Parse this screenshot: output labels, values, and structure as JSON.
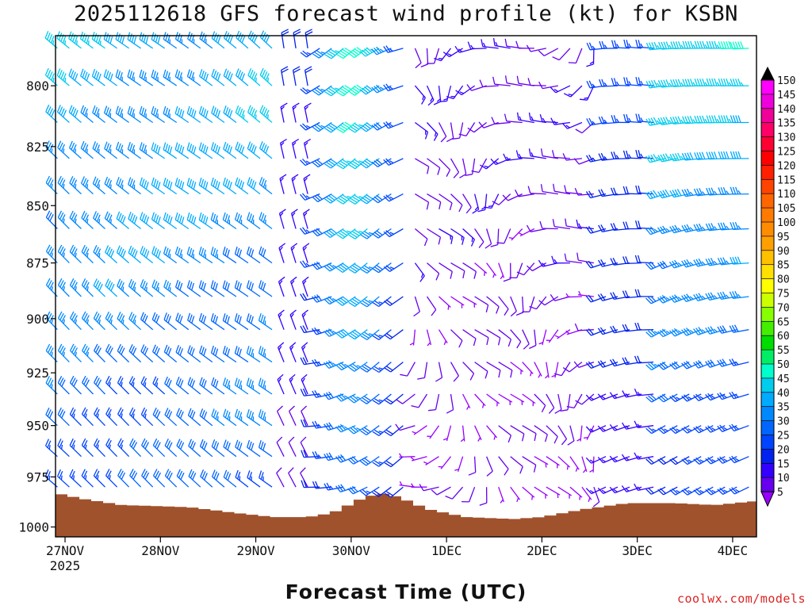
{
  "chart_data": {
    "type": "wind-barb-profile",
    "title": "2025112618 GFS forecast wind profile (kt) for KSBN",
    "xlabel": "Forecast Time (UTC)",
    "ylabel": "",
    "credit": "coolwx.com/models",
    "x_tick_labels": [
      "27NOV",
      "28NOV",
      "29NOV",
      "30NOV",
      "1DEC",
      "2DEC",
      "3DEC",
      "4DEC"
    ],
    "x_tick_days": [
      0,
      1,
      2,
      3,
      4,
      5,
      6,
      7
    ],
    "x_year_label": "2025",
    "x_range_days": [
      -0.1,
      7.25
    ],
    "y_tick_labels": [
      "800",
      "825",
      "850",
      "875",
      "900",
      "925",
      "950",
      "975",
      "1000"
    ],
    "y_range_hpa": [
      780,
      1005
    ],
    "barb_levels_hpa": [
      785,
      800,
      815,
      830,
      845,
      860,
      875,
      890,
      905,
      920,
      935,
      950,
      965,
      980,
      995
    ],
    "time_step_hours": 3,
    "ground_surface_hpa": [
      {
        "day": -0.1,
        "hpa": 983
      },
      {
        "day": 0.2,
        "hpa": 986
      },
      {
        "day": 0.6,
        "hpa": 989
      },
      {
        "day": 1.3,
        "hpa": 990
      },
      {
        "day": 1.8,
        "hpa": 993
      },
      {
        "day": 2.2,
        "hpa": 995
      },
      {
        "day": 2.55,
        "hpa": 995
      },
      {
        "day": 2.8,
        "hpa": 993
      },
      {
        "day": 3.1,
        "hpa": 986
      },
      {
        "day": 3.3,
        "hpa": 983
      },
      {
        "day": 3.5,
        "hpa": 985
      },
      {
        "day": 3.8,
        "hpa": 991
      },
      {
        "day": 4.2,
        "hpa": 995
      },
      {
        "day": 4.7,
        "hpa": 996
      },
      {
        "day": 5.0,
        "hpa": 995
      },
      {
        "day": 5.45,
        "hpa": 991
      },
      {
        "day": 5.9,
        "hpa": 988
      },
      {
        "day": 6.4,
        "hpa": 988
      },
      {
        "day": 6.8,
        "hpa": 989
      },
      {
        "day": 7.25,
        "hpa": 987
      }
    ],
    "colorbar": {
      "labels": [
        "150",
        "145",
        "140",
        "135",
        "130",
        "125",
        "120",
        "115",
        "110",
        "105",
        "100",
        "95",
        "90",
        "85",
        "80",
        "75",
        "70",
        "65",
        "60",
        "55",
        "50",
        "45",
        "40",
        "35",
        "30",
        "25",
        "20",
        "15",
        "10",
        "5"
      ],
      "colors": [
        "#ff00ff",
        "#ee00dd",
        "#ee0099",
        "#ff0066",
        "#ff0033",
        "#ff0000",
        "#ff2000",
        "#ff4400",
        "#ff6600",
        "#ff7a00",
        "#ff8c00",
        "#ffa000",
        "#ffc000",
        "#ffe000",
        "#ffff00",
        "#ccff00",
        "#88ff00",
        "#44ee00",
        "#00dd00",
        "#00ee66",
        "#00ffcc",
        "#00ccee",
        "#00aaff",
        "#0088ff",
        "#0066ff",
        "#0044ff",
        "#0022ee",
        "#3300ff",
        "#6600ee",
        "#9900ff"
      ]
    },
    "wind_description": "Northwest flow 25-45 kt on 27-28 Nov; west-southwest 30-45 kt near 30 Nov aloft; light variable 5-15 kt 1-2 Dec; westerly 15-45 kt 3-4 Dec"
  }
}
